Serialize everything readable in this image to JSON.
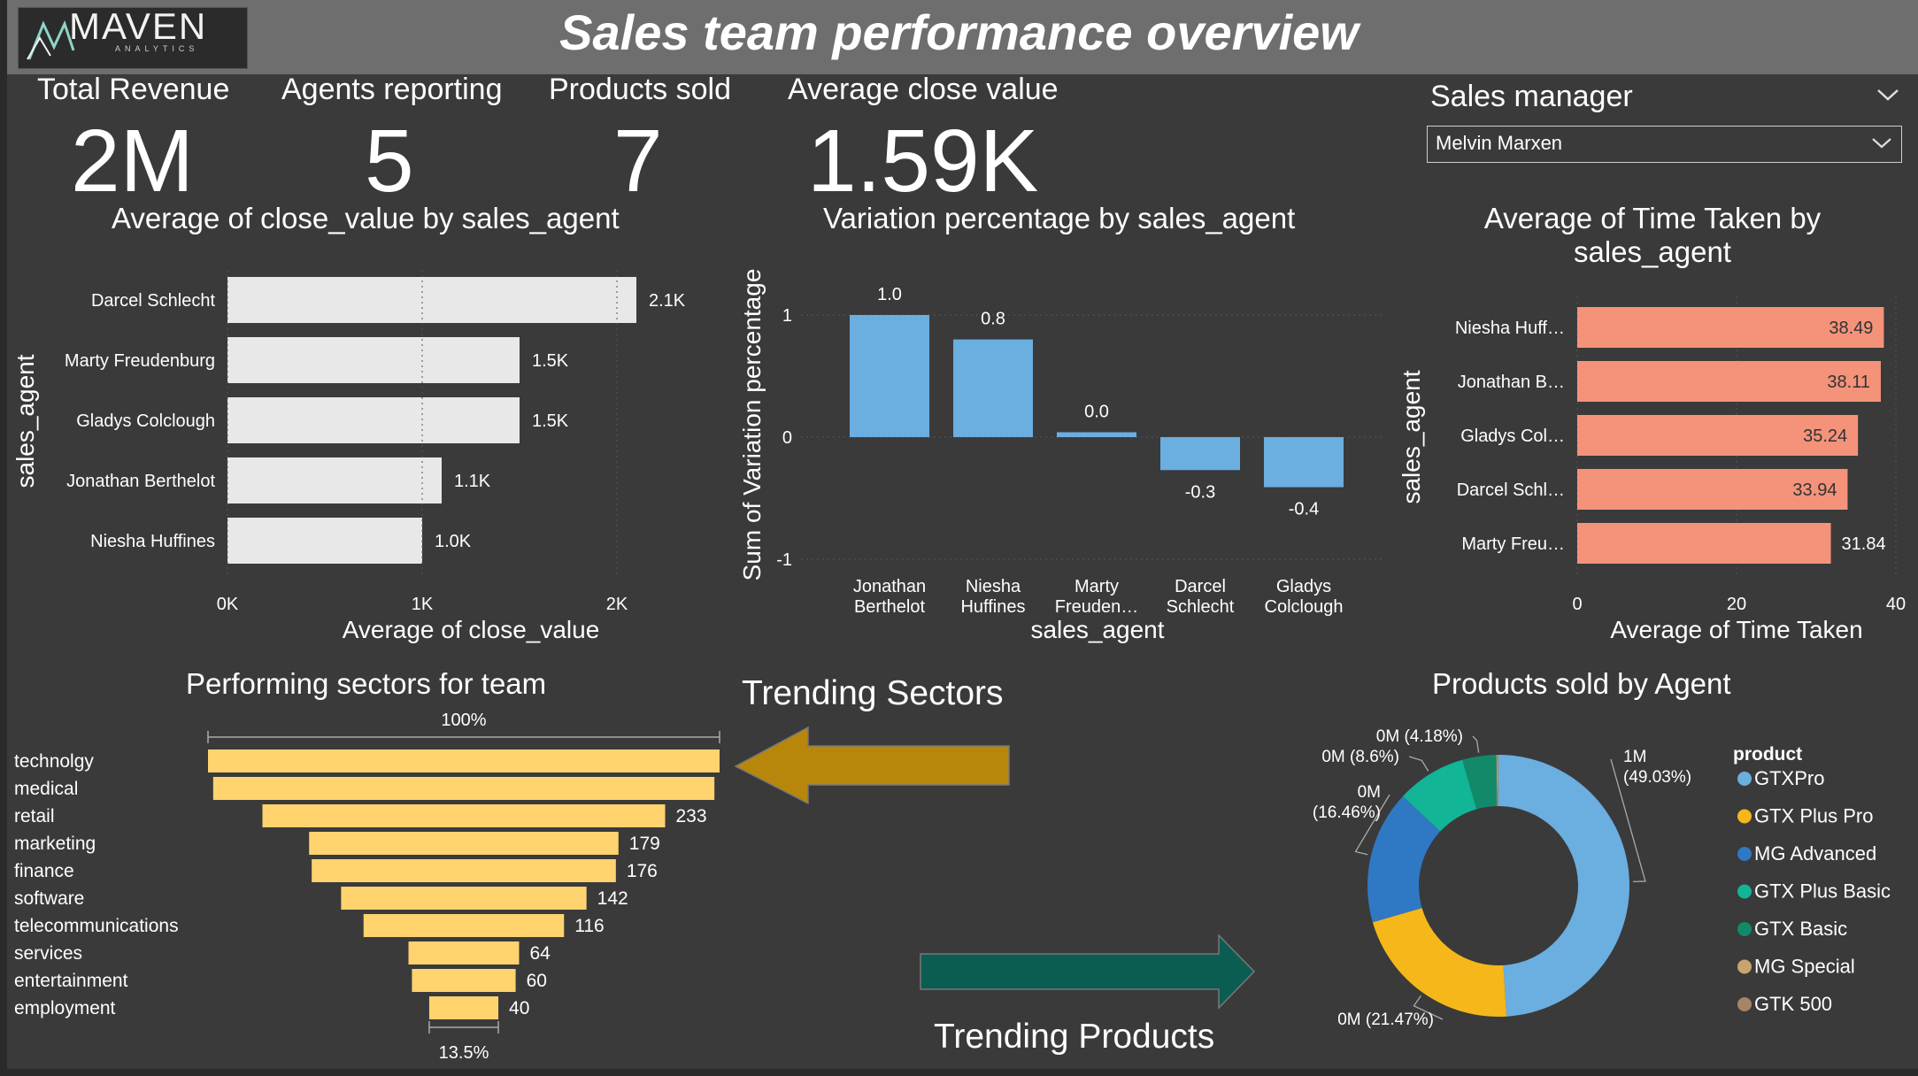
{
  "header": {
    "logo_text": "MAVEN",
    "logo_sub": "ANALYTICS",
    "title": "Sales team performance overview"
  },
  "kpis": [
    {
      "label": "Total Revenue",
      "value": "2M"
    },
    {
      "label": "Agents reporting",
      "value": "5"
    },
    {
      "label": "Products sold",
      "value": "7"
    },
    {
      "label": "Average close value",
      "value": "1.59K"
    }
  ],
  "slicer": {
    "label": "Sales manager",
    "selected": "Melvin Marxen"
  },
  "annotations": {
    "trending_sectors": "Trending Sectors",
    "trending_products": "Trending Products"
  },
  "colors": {
    "bar_grey": "#e8e8e8",
    "bar_blue": "#6baee0",
    "bar_salmon": "#f4937a",
    "funnel_yellow": "#ffd36e",
    "arrow_gold": "#b8860b",
    "arrow_teal": "#0b5d52"
  },
  "chart_data": [
    {
      "id": "avg_close_value",
      "type": "bar",
      "orientation": "horizontal",
      "title": "Average of close_value by sales_agent",
      "xlabel": "Average of close_value",
      "ylabel": "sales_agent",
      "categories": [
        "Darcel Schlecht",
        "Marty Freudenburg",
        "Gladys Colclough",
        "Jonathan Berthelot",
        "Niesha Huffines"
      ],
      "values": [
        2100,
        1500,
        1500,
        1100,
        1000
      ],
      "data_labels": [
        "2.1K",
        "1.5K",
        "1.5K",
        "1.1K",
        "1.0K"
      ],
      "xticks": [
        "0K",
        "1K",
        "2K"
      ],
      "xlim": [
        0,
        2300
      ]
    },
    {
      "id": "variation_pct",
      "type": "bar",
      "orientation": "vertical",
      "title": "Variation percentage by sales_agent",
      "xlabel": "sales_agent",
      "ylabel": "Sum of Variation percentage",
      "categories": [
        [
          "Jonathan",
          "Berthelot"
        ],
        [
          "Niesha",
          "Huffines"
        ],
        [
          "Marty",
          "Freuden…"
        ],
        [
          "Darcel",
          "Schlecht"
        ],
        [
          "Gladys",
          "Colclough"
        ]
      ],
      "values": [
        1.0,
        0.8,
        0.04,
        -0.27,
        -0.41
      ],
      "data_labels": [
        "1.0",
        "0.8",
        "0.0",
        "-0.3",
        "-0.4"
      ],
      "yticks": [
        "1",
        "0",
        "-1"
      ],
      "ylim": [
        -1,
        1.2
      ]
    },
    {
      "id": "avg_time_taken",
      "type": "bar",
      "orientation": "horizontal",
      "title": [
        "Average of Time Taken by",
        "sales_agent"
      ],
      "xlabel": "Average of Time Taken",
      "ylabel": "sales_agent",
      "categories": [
        "Niesha Huff…",
        "Jonathan B…",
        "Gladys Col…",
        "Darcel Schl…",
        "Marty Freu…"
      ],
      "values": [
        38.49,
        38.11,
        35.24,
        33.94,
        31.84
      ],
      "data_labels": [
        "38.49",
        "38.11",
        "35.24",
        "33.94",
        "31.84"
      ],
      "xticks": [
        "0",
        "20",
        "40"
      ],
      "xlim": [
        0,
        40
      ]
    },
    {
      "id": "sectors_funnel",
      "type": "bar",
      "orientation": "funnel",
      "title": "Performing sectors for team",
      "categories": [
        "technolgy",
        "medical",
        "retail",
        "marketing",
        "finance",
        "software",
        "telecommunications",
        "services",
        "entertainment",
        "employment"
      ],
      "values": [
        296,
        290,
        233,
        179,
        176,
        142,
        116,
        64,
        60,
        40
      ],
      "data_labels": [
        "",
        "",
        "233",
        "179",
        "176",
        "142",
        "116",
        "64",
        "60",
        "40"
      ],
      "top_label": "100%",
      "bottom_label": "13.5%"
    },
    {
      "id": "products_donut",
      "type": "pie",
      "style": "donut",
      "title": "Products sold by Agent",
      "legend_title": "product",
      "legend_position": "right",
      "slices": [
        {
          "name": "GTXPro",
          "value": 49.03,
          "label": [
            "1M",
            "(49.03%)"
          ],
          "color": "#6baee0"
        },
        {
          "name": "GTX Plus Pro",
          "value": 21.47,
          "label": [
            "0M (21.47%)"
          ],
          "color": "#f5b71a"
        },
        {
          "name": "MG Advanced",
          "value": 16.46,
          "label": [
            "0M",
            "(16.46%)"
          ],
          "color": "#2f78c4"
        },
        {
          "name": "GTX Plus Basic",
          "value": 8.6,
          "label": [
            "0M (8.6%)"
          ],
          "color": "#12b596"
        },
        {
          "name": "GTX Basic",
          "value": 4.18,
          "label": [
            "0M (4.18%)"
          ],
          "color": "#128a6a"
        },
        {
          "name": "MG Special",
          "value": 0.13,
          "label": [
            ""
          ],
          "color": "#c8a46e"
        },
        {
          "name": "GTK 500",
          "value": 0.13,
          "label": [
            ""
          ],
          "color": "#a88466"
        }
      ]
    }
  ]
}
